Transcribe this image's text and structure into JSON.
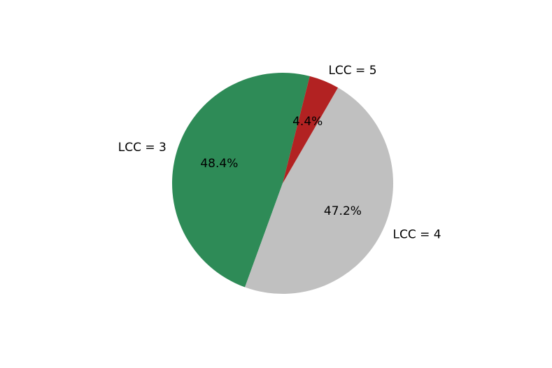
{
  "chart_data": {
    "type": "pie",
    "categories": [
      "LCC = 3",
      "LCC = 4",
      "LCC = 5"
    ],
    "values": [
      48.4,
      47.2,
      4.4
    ],
    "value_labels": [
      "48.4%",
      "47.2%",
      "4.4%"
    ],
    "colors": [
      "#2e8b57",
      "#c0c0c0",
      "#b22222"
    ]
  }
}
